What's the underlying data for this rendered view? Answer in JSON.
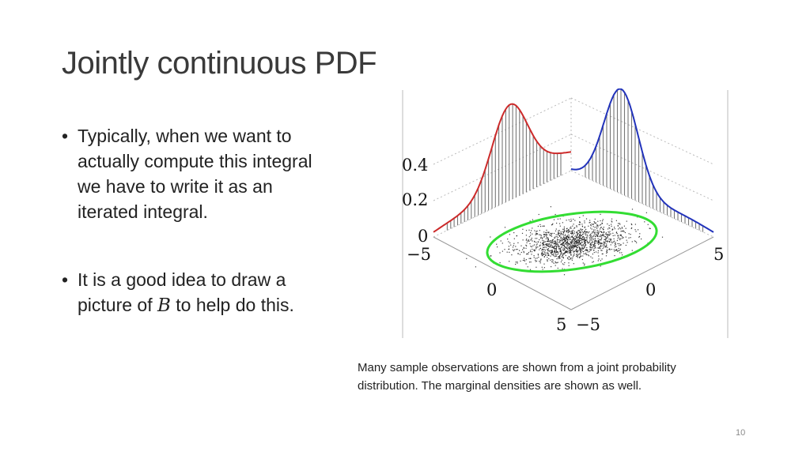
{
  "slide": {
    "title": "Jointly continuous PDF",
    "bullets": [
      {
        "bullet": "•",
        "text": "Typically, when we want to\nactually compute this integral\nwe have to write it as an\niterated integral."
      },
      {
        "bullet": "•",
        "text_before": "It is a good idea to draw a\npicture of ",
        "math": "B",
        "text_after": " to help do this."
      }
    ],
    "figure": {
      "z_ticks": [
        "0.4",
        "0.2",
        "0"
      ],
      "x_ticks": [
        "−5",
        "0",
        "5"
      ],
      "y_ticks": [
        "−5",
        "0",
        "5"
      ],
      "colors": {
        "left_marginal": "#cc2a2a",
        "right_marginal": "#2233bb",
        "ellipse": "#33dd33",
        "stems": "#777777",
        "points": "#111111",
        "box": "#bbbbbb"
      }
    },
    "caption": "Many sample observations are shown from a joint probability\ndistribution. The marginal densities are shown as well.",
    "page_number": "10"
  }
}
